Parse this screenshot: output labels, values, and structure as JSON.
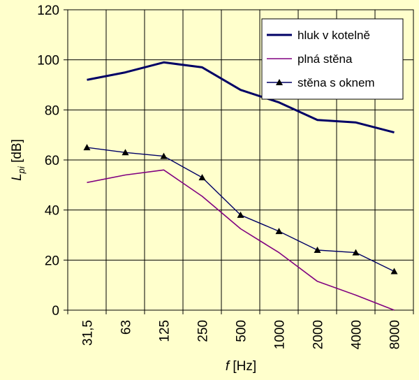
{
  "chart_data": {
    "type": "line",
    "categories": [
      "31,5",
      "63",
      "125",
      "250",
      "500",
      "1000",
      "2000",
      "4000",
      "8000"
    ],
    "series": [
      {
        "name": "hluk v kotelně",
        "values": [
          92,
          95,
          99,
          97,
          88,
          83,
          76,
          75,
          71
        ],
        "color": "#000066",
        "marker": "none"
      },
      {
        "name": "plná stěna",
        "values": [
          51,
          54,
          56,
          45.5,
          32.5,
          23,
          11.5,
          6,
          0
        ],
        "color": "#800080",
        "marker": "none"
      },
      {
        "name": "stěna s oknem",
        "values": [
          65,
          63,
          61.5,
          53,
          38,
          31.5,
          24,
          23,
          15.5
        ],
        "color": "#000066",
        "marker": "triangle"
      }
    ],
    "ylim": [
      0,
      120
    ],
    "yticks": [
      0,
      20,
      40,
      60,
      80,
      100,
      120
    ],
    "ylabel": {
      "main": "L",
      "sub": "pi",
      "unit": " [dB]"
    },
    "xlabel": {
      "main": "f",
      "unit": " [Hz]"
    },
    "grid": true,
    "legend_position": "top-right",
    "background": "#ffffcc"
  }
}
